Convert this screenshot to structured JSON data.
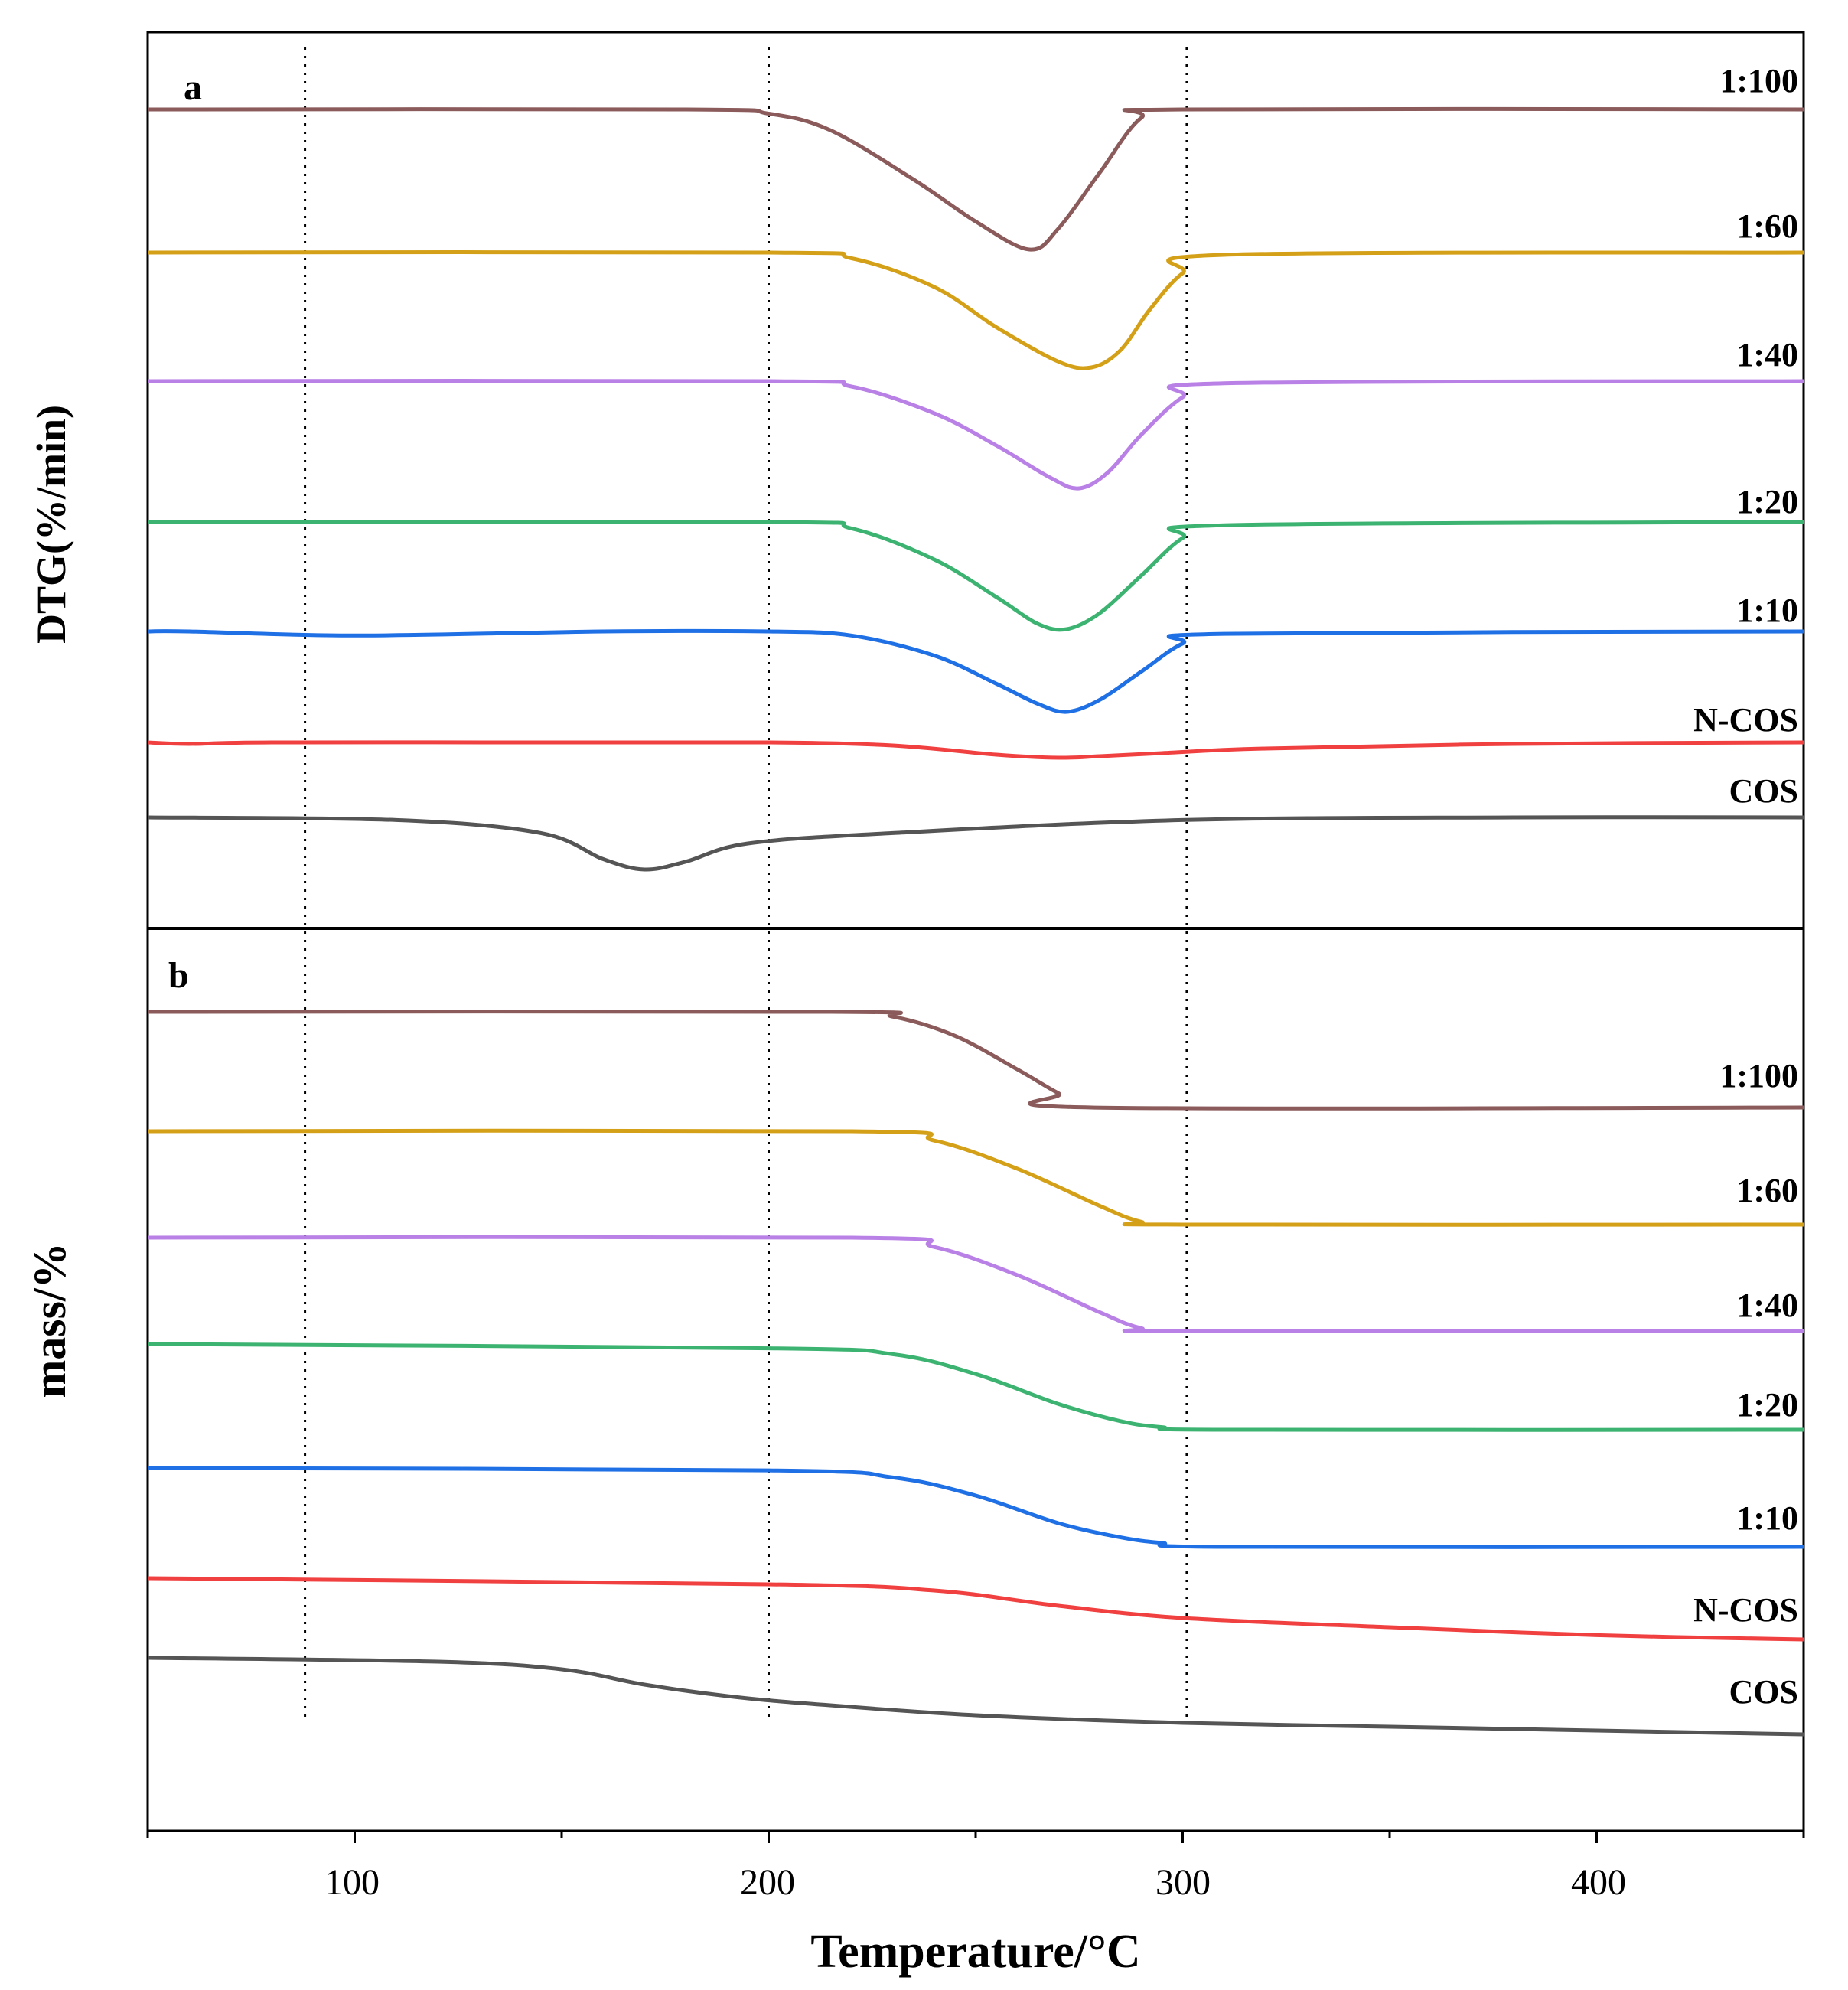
{
  "figure": {
    "xlabel": "Temperature/°C",
    "ticks": [
      "100",
      "200",
      "300",
      "400"
    ]
  },
  "colors": {
    "1:100": "#8b5a5a",
    "1:60": "#d4a017",
    "1:40": "#b980e6",
    "1:20": "#3cb371",
    "1:10": "#1f6fe5",
    "N-COS": "#f04040",
    "COS": "#555555"
  },
  "chart_data": [
    {
      "type": "line",
      "panel": "a",
      "ylabel": "DTG(%/min)",
      "xlim": [
        50,
        450
      ],
      "ref_lines_x": [
        88,
        200,
        301
      ],
      "series": [
        {
          "name": "1:100",
          "x": [
            50,
            180,
            200,
            215,
            235,
            250,
            263,
            270,
            280,
            290,
            300,
            450
          ],
          "y": [
            0,
            0,
            -0.03,
            -0.15,
            -0.5,
            -0.8,
            -1.0,
            -0.85,
            -0.45,
            -0.06,
            0,
            0
          ]
        },
        {
          "name": "1:60",
          "x": [
            50,
            200,
            220,
            240,
            255,
            270,
            278,
            285,
            292,
            300,
            310,
            450
          ],
          "y": [
            0,
            0,
            -0.05,
            -0.3,
            -0.65,
            -0.95,
            -1.0,
            -0.85,
            -0.5,
            -0.18,
            -0.02,
            0
          ]
        },
        {
          "name": "1:40",
          "x": [
            50,
            200,
            220,
            240,
            255,
            268,
            275,
            282,
            290,
            300,
            310,
            450
          ],
          "y": [
            0,
            0,
            -0.05,
            -0.3,
            -0.6,
            -0.9,
            -1.0,
            -0.85,
            -0.5,
            -0.15,
            -0.02,
            0
          ]
        },
        {
          "name": "1:20",
          "x": [
            50,
            200,
            220,
            240,
            255,
            265,
            272,
            280,
            290,
            300,
            310,
            450
          ],
          "y": [
            0,
            0,
            -0.06,
            -0.35,
            -0.7,
            -0.95,
            -1.0,
            -0.85,
            -0.5,
            -0.15,
            -0.03,
            0
          ]
        },
        {
          "name": "1:10",
          "x": [
            50,
            60,
            100,
            160,
            200,
            220,
            240,
            255,
            265,
            272,
            280,
            290,
            300,
            310,
            450
          ],
          "y": [
            0,
            0,
            -0.05,
            0,
            0,
            -0.05,
            -0.3,
            -0.65,
            -0.9,
            -1.0,
            -0.85,
            -0.5,
            -0.15,
            -0.03,
            0
          ]
        },
        {
          "name": "N-COS",
          "x": [
            50,
            60,
            80,
            150,
            200,
            230,
            255,
            270,
            280,
            295,
            320,
            380,
            450
          ],
          "y": [
            0,
            -0.05,
            0,
            0,
            0,
            -0.1,
            -0.4,
            -0.5,
            -0.45,
            -0.35,
            -0.2,
            -0.05,
            0
          ]
        },
        {
          "name": "COS",
          "x": [
            50,
            110,
            145,
            160,
            170,
            180,
            195,
            230,
            300,
            380,
            450
          ],
          "y": [
            0,
            -0.05,
            -0.3,
            -0.8,
            -1.0,
            -0.85,
            -0.5,
            -0.3,
            -0.05,
            0,
            0
          ]
        }
      ]
    },
    {
      "type": "line",
      "panel": "b",
      "ylabel": "mass/%",
      "xlim": [
        50,
        450
      ],
      "ref_lines_x": [
        88,
        200,
        301
      ],
      "series": [
        {
          "name": "1:100",
          "x": [
            50,
            215,
            230,
            245,
            260,
            270,
            278,
            450
          ],
          "y": [
            0,
            0,
            -0.05,
            -0.25,
            -0.6,
            -0.85,
            -1.0,
            -1.0
          ]
        },
        {
          "name": "1:60",
          "x": [
            50,
            220,
            240,
            260,
            280,
            290,
            300,
            450
          ],
          "y": [
            0,
            0,
            -0.1,
            -0.4,
            -0.8,
            -0.97,
            -1.0,
            -1.0
          ]
        },
        {
          "name": "1:40",
          "x": [
            50,
            220,
            240,
            260,
            280,
            290,
            300,
            450
          ],
          "y": [
            0,
            0,
            -0.1,
            -0.4,
            -0.8,
            -0.97,
            -1.0,
            -1.0
          ]
        },
        {
          "name": "1:20",
          "x": [
            50,
            200,
            230,
            250,
            270,
            285,
            295,
            310,
            450
          ],
          "y": [
            0,
            -0.05,
            -0.12,
            -0.35,
            -0.7,
            -0.9,
            -0.97,
            -1.0,
            -1.0
          ]
        },
        {
          "name": "1:10",
          "x": [
            50,
            200,
            230,
            250,
            270,
            285,
            295,
            310,
            450
          ],
          "y": [
            0,
            -0.03,
            -0.12,
            -0.35,
            -0.7,
            -0.88,
            -0.95,
            -1.0,
            -1.0
          ]
        },
        {
          "name": "N-COS",
          "x": [
            50,
            200,
            240,
            270,
            300,
            350,
            400,
            450
          ],
          "y": [
            0,
            -0.1,
            -0.2,
            -0.45,
            -0.65,
            -0.8,
            -0.93,
            -1.0
          ]
        },
        {
          "name": "COS",
          "x": [
            50,
            120,
            150,
            170,
            190,
            210,
            250,
            300,
            350,
            400,
            450
          ],
          "y": [
            0,
            -0.05,
            -0.15,
            -0.35,
            -0.5,
            -0.6,
            -0.75,
            -0.85,
            -0.9,
            -0.95,
            -1.0
          ]
        }
      ]
    }
  ]
}
